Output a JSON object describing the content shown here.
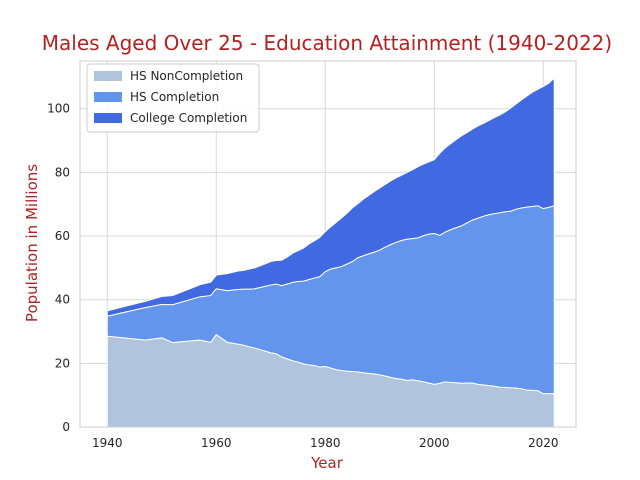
{
  "chart_data": {
    "type": "area",
    "stacked": true,
    "title": "Males Aged Over 25 - Education Attainment (1940-2022)",
    "xlabel": "Year",
    "ylabel": "Population in Millions",
    "xlim": [
      1935,
      2026
    ],
    "ylim": [
      0,
      115
    ],
    "xticks": [
      1940,
      1960,
      1980,
      2000,
      2020
    ],
    "yticks": [
      0,
      20,
      40,
      60,
      80,
      100
    ],
    "grid": true,
    "legend_position": "top-left",
    "x": [
      1940,
      1947,
      1950,
      1952,
      1957,
      1959,
      1960,
      1962,
      1964,
      1965,
      1966,
      1967,
      1968,
      1969,
      1970,
      1971,
      1972,
      1973,
      1974,
      1975,
      1976,
      1977,
      1978,
      1979,
      1980,
      1981,
      1982,
      1983,
      1984,
      1985,
      1986,
      1987,
      1988,
      1989,
      1990,
      1991,
      1992,
      1993,
      1994,
      1995,
      1996,
      1997,
      1998,
      1999,
      2000,
      2001,
      2002,
      2003,
      2004,
      2005,
      2006,
      2007,
      2008,
      2009,
      2010,
      2011,
      2012,
      2013,
      2014,
      2015,
      2016,
      2017,
      2018,
      2019,
      2020,
      2021,
      2022
    ],
    "series": [
      {
        "name": "HS NonCompletion",
        "color": "#b0c4de",
        "values": [
          28.5,
          27.3,
          28.0,
          26.5,
          27.3,
          26.6,
          29.0,
          26.6,
          26.0,
          25.7,
          25.2,
          24.8,
          24.3,
          23.8,
          23.3,
          23.0,
          22.0,
          21.4,
          20.8,
          20.4,
          19.8,
          19.5,
          19.3,
          18.8,
          19.0,
          18.5,
          18.0,
          17.7,
          17.5,
          17.4,
          17.3,
          17.0,
          16.8,
          16.6,
          16.4,
          16.0,
          15.6,
          15.2,
          15.0,
          14.6,
          14.8,
          14.5,
          14.2,
          13.8,
          13.4,
          13.7,
          14.2,
          14.0,
          13.9,
          13.7,
          13.8,
          13.8,
          13.4,
          13.2,
          13.0,
          12.8,
          12.5,
          12.4,
          12.3,
          12.2,
          12.0,
          11.6,
          11.5,
          11.4,
          10.4,
          10.5,
          10.4
        ]
      },
      {
        "name": "HS Completion",
        "color": "#6495ed",
        "values": [
          34.8,
          37.5,
          38.5,
          38.4,
          40.9,
          41.3,
          43.4,
          42.8,
          43.2,
          43.3,
          43.3,
          43.4,
          43.8,
          44.2,
          44.6,
          44.9,
          44.4,
          44.9,
          45.4,
          45.7,
          45.8,
          46.3,
          46.8,
          47.2,
          48.8,
          49.6,
          50.0,
          50.4,
          51.2,
          52.0,
          53.2,
          53.8,
          54.4,
          54.9,
          55.6,
          56.5,
          57.3,
          58.0,
          58.6,
          59.0,
          59.2,
          59.4,
          60.1,
          60.6,
          60.8,
          60.2,
          61.2,
          62.0,
          62.6,
          63.2,
          64.1,
          65.0,
          65.6,
          66.2,
          66.7,
          67.0,
          67.3,
          67.6,
          67.8,
          68.4,
          68.8,
          69.1,
          69.3,
          69.5,
          68.6,
          69.0,
          69.5
        ]
      },
      {
        "name": "College Completion",
        "color": "#4169e1",
        "values": [
          36.5,
          39.5,
          41.0,
          41.3,
          44.7,
          45.5,
          47.7,
          48.2,
          49.0,
          49.2,
          49.6,
          50.0,
          50.6,
          51.3,
          52.0,
          52.3,
          52.4,
          53.4,
          54.6,
          55.4,
          56.2,
          57.5,
          58.5,
          59.6,
          61.4,
          62.9,
          64.3,
          65.7,
          67.2,
          68.9,
          70.2,
          71.6,
          72.8,
          74.0,
          75.1,
          76.2,
          77.3,
          78.3,
          79.1,
          80.0,
          80.8,
          81.8,
          82.6,
          83.3,
          84.0,
          86.0,
          87.7,
          89.0,
          90.3,
          91.5,
          92.5,
          93.6,
          94.6,
          95.4,
          96.3,
          97.2,
          98.0,
          99.0,
          100.2,
          101.5,
          102.8,
          104.0,
          105.2,
          106.1,
          107.0,
          108.0,
          109.6
        ]
      }
    ]
  }
}
